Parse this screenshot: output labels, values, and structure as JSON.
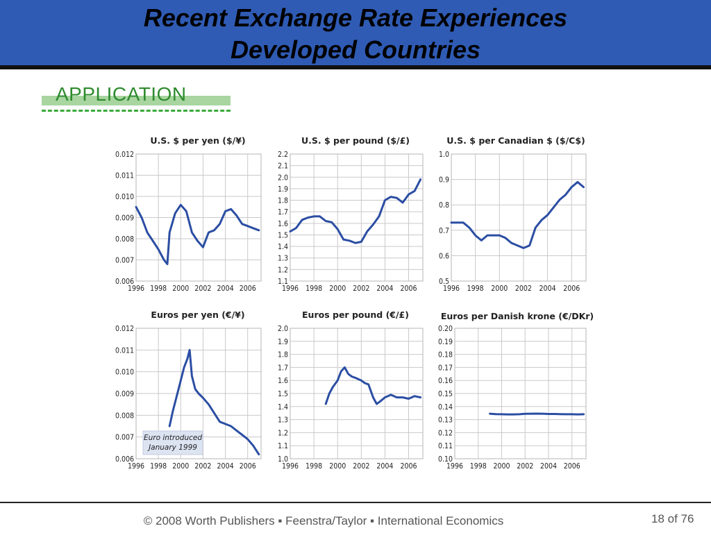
{
  "slide": {
    "title_line1": "Recent Exchange Rate Experiences",
    "title_line2": "Developed Countries",
    "section_label": "APPLICATION",
    "footer": "© 2008 Worth Publishers ▪ Feenstra/Taylor ▪ International Economics",
    "page_number": "18 of 76"
  },
  "colors": {
    "header_bg": "#2f5bb4",
    "series": "#2b4ea3",
    "label_green": "#2e8b2e"
  },
  "chart_data": [
    {
      "type": "line",
      "title": "U.S. $ per yen ($/¥)",
      "x_ticks": [
        "1996",
        "1998",
        "2000",
        "2002",
        "2004",
        "2006"
      ],
      "xlim": [
        1996,
        2007.2
      ],
      "y_ticks": [
        "0.012",
        "0.011",
        "0.010",
        "0.009",
        "0.008",
        "0.007",
        "0.006"
      ],
      "ylim": [
        0.006,
        0.012
      ],
      "series": [
        {
          "x": [
            1996,
            1996.5,
            1997,
            1997.5,
            1998,
            1998.5,
            1998.8,
            1999,
            1999.5,
            2000,
            2000.5,
            2001,
            2001.5,
            2002,
            2002.5,
            2003,
            2003.5,
            2004,
            2004.5,
            2005,
            2005.5,
            2006,
            2006.5,
            2007
          ],
          "y": [
            0.0095,
            0.009,
            0.0083,
            0.0079,
            0.0075,
            0.007,
            0.0068,
            0.0083,
            0.0092,
            0.0096,
            0.0093,
            0.0083,
            0.0079,
            0.0076,
            0.0083,
            0.0084,
            0.0087,
            0.0093,
            0.0094,
            0.0091,
            0.0087,
            0.0086,
            0.0085,
            0.0084
          ]
        }
      ]
    },
    {
      "type": "line",
      "title": "U.S. $ per pound ($/£)",
      "x_ticks": [
        "1996",
        "1998",
        "2000",
        "2002",
        "2004",
        "2006"
      ],
      "xlim": [
        1996,
        2007.2
      ],
      "y_ticks": [
        "2.2",
        "2.1",
        "2.0",
        "1.9",
        "1.8",
        "1.7",
        "1.6",
        "1.5",
        "1.4",
        "1.3",
        "1.2",
        "1.1"
      ],
      "ylim": [
        1.1,
        2.2
      ],
      "series": [
        {
          "x": [
            1996,
            1996.5,
            1997,
            1997.5,
            1998,
            1998.5,
            1999,
            1999.5,
            2000,
            2000.5,
            2001,
            2001.5,
            2002,
            2002.5,
            2003,
            2003.5,
            2004,
            2004.5,
            2005,
            2005.5,
            2006,
            2006.5,
            2007
          ],
          "y": [
            1.53,
            1.56,
            1.63,
            1.65,
            1.66,
            1.66,
            1.62,
            1.61,
            1.55,
            1.46,
            1.45,
            1.43,
            1.44,
            1.53,
            1.59,
            1.66,
            1.8,
            1.83,
            1.82,
            1.78,
            1.85,
            1.88,
            1.98
          ]
        }
      ]
    },
    {
      "type": "line",
      "title": "U.S. $ per Canadian $ ($/C$)",
      "x_ticks": [
        "1996",
        "1998",
        "2000",
        "2002",
        "2004",
        "2006"
      ],
      "xlim": [
        1996,
        2007.2
      ],
      "y_ticks": [
        "1.0",
        "0.9",
        "0.8",
        "0.7",
        "0.6",
        "0.5"
      ],
      "ylim": [
        0.5,
        1.0
      ],
      "series": [
        {
          "x": [
            1996,
            1996.5,
            1997,
            1997.5,
            1998,
            1998.5,
            1999,
            1999.5,
            2000,
            2000.5,
            2001,
            2001.5,
            2002,
            2002.5,
            2003,
            2003.5,
            2004,
            2004.5,
            2005,
            2005.5,
            2006,
            2006.5,
            2007
          ],
          "y": [
            0.73,
            0.73,
            0.73,
            0.71,
            0.68,
            0.66,
            0.68,
            0.68,
            0.68,
            0.67,
            0.65,
            0.64,
            0.63,
            0.64,
            0.71,
            0.74,
            0.76,
            0.79,
            0.82,
            0.84,
            0.87,
            0.89,
            0.87
          ]
        }
      ]
    },
    {
      "type": "line",
      "title": "Euros per yen (€/¥)",
      "x_ticks": [
        "1996",
        "1998",
        "2000",
        "2002",
        "2004",
        "2006"
      ],
      "xlim": [
        1996,
        2007.2
      ],
      "y_ticks": [
        "0.012",
        "0.011",
        "0.010",
        "0.009",
        "0.008",
        "0.007",
        "0.006"
      ],
      "ylim": [
        0.006,
        0.012
      ],
      "annotation": [
        "Euro introduced",
        "January 1999"
      ],
      "series": [
        {
          "x": [
            1999,
            1999.3,
            1999.6,
            2000,
            2000.3,
            2000.6,
            2000.8,
            2001,
            2001.3,
            2001.6,
            2002,
            2002.5,
            2003,
            2003.5,
            2004,
            2004.5,
            2005,
            2005.5,
            2006,
            2006.5,
            2007
          ],
          "y": [
            0.0075,
            0.0082,
            0.0088,
            0.0096,
            0.0102,
            0.0106,
            0.011,
            0.0098,
            0.0092,
            0.009,
            0.0088,
            0.0085,
            0.0081,
            0.0077,
            0.0076,
            0.0075,
            0.0073,
            0.0071,
            0.0069,
            0.0066,
            0.0062
          ]
        }
      ]
    },
    {
      "type": "line",
      "title": "Euros per pound (€/£)",
      "x_ticks": [
        "1996",
        "1998",
        "2000",
        "2002",
        "2004",
        "2006"
      ],
      "xlim": [
        1996,
        2007.2
      ],
      "y_ticks": [
        "2.0",
        "1.9",
        "1.8",
        "1.7",
        "1.6",
        "1.5",
        "1.4",
        "1.3",
        "1.2",
        "1.1",
        "1.0"
      ],
      "ylim": [
        1.0,
        2.0
      ],
      "series": [
        {
          "x": [
            1999,
            1999.3,
            1999.6,
            2000,
            2000.3,
            2000.6,
            2000.9,
            2001.2,
            2001.5,
            2002,
            2002.3,
            2002.6,
            2003,
            2003.3,
            2003.6,
            2004,
            2004.5,
            2005,
            2005.5,
            2006,
            2006.5,
            2007
          ],
          "y": [
            1.42,
            1.5,
            1.55,
            1.6,
            1.67,
            1.7,
            1.65,
            1.63,
            1.62,
            1.6,
            1.58,
            1.57,
            1.47,
            1.42,
            1.44,
            1.47,
            1.49,
            1.47,
            1.47,
            1.46,
            1.48,
            1.47
          ]
        }
      ]
    },
    {
      "type": "line",
      "title": "Euros per Danish krone (€/DKr)",
      "x_ticks": [
        "1996",
        "1998",
        "2000",
        "2002",
        "2004",
        "2006"
      ],
      "xlim": [
        1996,
        2007.2
      ],
      "y_ticks": [
        "0.20",
        "0.19",
        "0.18",
        "0.17",
        "0.16",
        "0.15",
        "0.14",
        "0.13",
        "0.12",
        "0.11",
        "0.10"
      ],
      "ylim": [
        0.1,
        0.2
      ],
      "series": [
        {
          "x": [
            1999,
            1999.5,
            2000,
            2000.5,
            2001,
            2001.5,
            2002,
            2002.5,
            2003,
            2003.5,
            2004,
            2004.5,
            2005,
            2005.5,
            2006,
            2006.5,
            2007
          ],
          "y": [
            0.1345,
            0.1342,
            0.1341,
            0.134,
            0.134,
            0.1341,
            0.1344,
            0.1345,
            0.1346,
            0.1345,
            0.1343,
            0.1343,
            0.1342,
            0.1341,
            0.1341,
            0.134,
            0.1341
          ]
        }
      ]
    }
  ]
}
